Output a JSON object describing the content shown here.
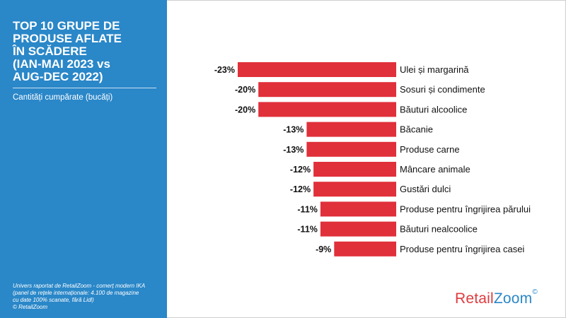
{
  "title_lines": [
    "TOP 10 GRUPE DE",
    "PRODUSE AFLATE",
    "ÎN SCĂDERE",
    "(IAN-MAI 2023 vs",
    "AUG-DEC 2022)"
  ],
  "subtitle": "Cantități cumpărate (bucăți)",
  "footnote_lines": [
    "Univers raportat de RetailZoom - comerț modern IKA",
    "(panel de rețele internaționale: 4.100 de magazine",
    "cu date 100% scanate, fără Lidl)",
    "© RetailZoom"
  ],
  "logo": {
    "part1": "Retail",
    "part2": "Zoom",
    "mark": "©"
  },
  "colors": {
    "panel": "#2a87c8",
    "bar": "#e0303a",
    "logo_red": "#e03a3e",
    "logo_blue": "#2a87c8"
  },
  "chart_data": {
    "type": "bar",
    "orientation": "horizontal",
    "title": "TOP 10 GRUPE DE PRODUSE AFLATE ÎN SCĂDERE (IAN-MAI 2023 vs AUG-DEC 2022)",
    "ylabel": "Cantități cumpărate (bucăți)",
    "categories": [
      "Ulei și margarină",
      "Sosuri și condimente",
      "Băuturi alcoolice",
      "Băcanie",
      "Produse carne",
      "Mâncare animale",
      "Gustări dulci",
      "Produse pentru îngrijirea părului",
      "Băuturi nealcoolice",
      "Produse pentru îngrijirea casei"
    ],
    "values": [
      -23,
      -20,
      -20,
      -13,
      -13,
      -12,
      -12,
      -11,
      -11,
      -9
    ],
    "labels": [
      "-23%",
      "-20%",
      "-20%",
      "-13%",
      "-13%",
      "-12%",
      "-12%",
      "-11%",
      "-11%",
      "-9%"
    ],
    "unit": "%",
    "xlim": [
      -23,
      0
    ]
  }
}
